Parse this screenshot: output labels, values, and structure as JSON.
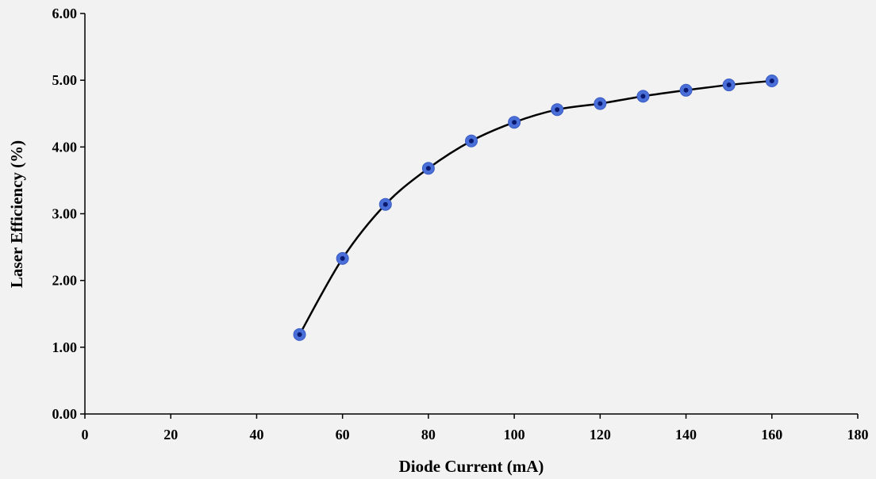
{
  "chart_data": {
    "type": "scatter",
    "title": "",
    "xlabel": "Diode Current (mA)",
    "ylabel": "Laser Efficiency (%)",
    "xlim": [
      0,
      180
    ],
    "ylim": [
      0,
      6
    ],
    "x_ticks": [
      "0",
      "20",
      "40",
      "60",
      "80",
      "100",
      "120",
      "140",
      "160",
      "180"
    ],
    "y_ticks": [
      "0.00",
      "1.00",
      "2.00",
      "3.00",
      "4.00",
      "5.00",
      "6.00"
    ],
    "grid": false,
    "legend": "none",
    "series": [
      {
        "x": [
          50,
          60,
          70,
          80,
          90,
          100,
          110,
          120,
          130,
          140,
          150,
          160
        ],
        "y": [
          1.19,
          2.33,
          3.14,
          3.68,
          4.09,
          4.37,
          4.56,
          4.65,
          4.76,
          4.85,
          4.93,
          4.99
        ],
        "marker_color": "#4a6fd8",
        "marker_center_color": "#0a1a70",
        "trendline": true,
        "trendline_color": "#000000"
      }
    ]
  }
}
